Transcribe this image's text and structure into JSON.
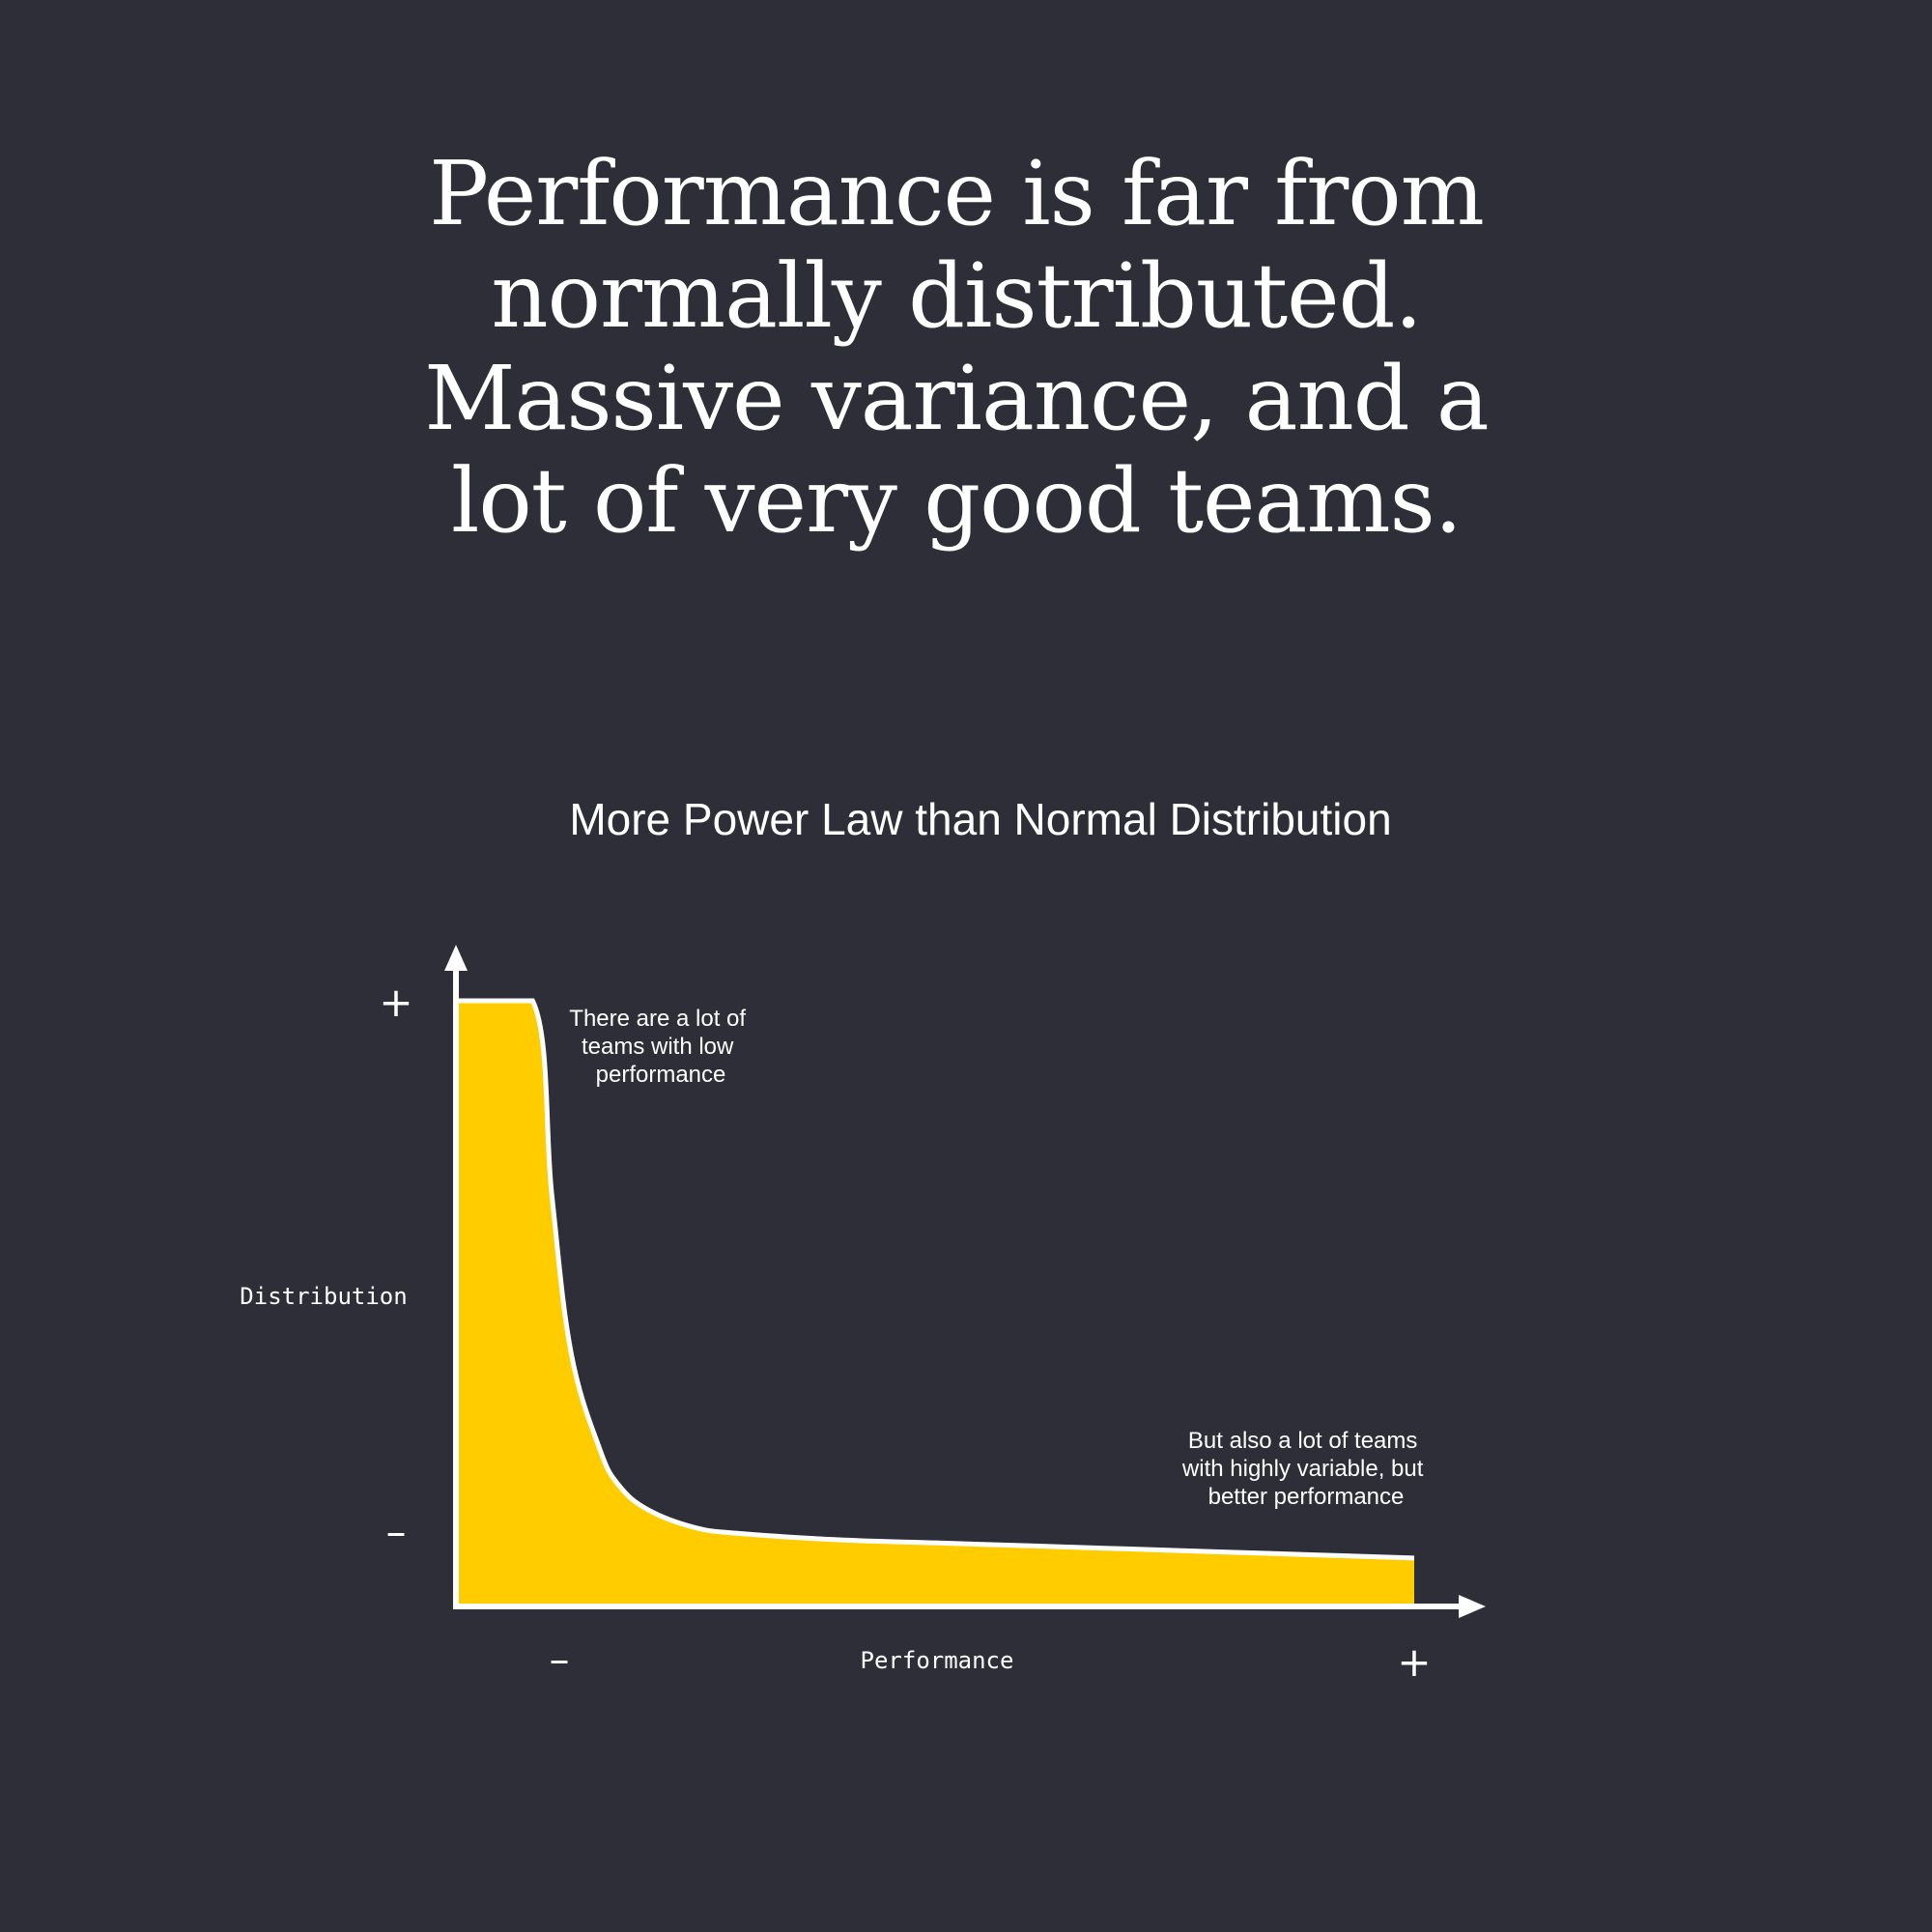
{
  "headline": {
    "lines": [
      "Performance is far from",
      "normally distributed.",
      "Massive variance, and a",
      "lot of very good teams."
    ]
  },
  "colors": {
    "background": "#2e2e38",
    "fill": "#ffcc00",
    "curve": "#ffffff",
    "text": "#ffffff"
  },
  "chart_data": {
    "type": "area",
    "title": "More Power Law than Normal Distribution",
    "xlabel": "Performance",
    "ylabel": "Distribution",
    "x_tick_labels": [
      "–",
      "+"
    ],
    "y_tick_labels": [
      "+",
      "–"
    ],
    "xlim": [
      0,
      1
    ],
    "ylim": [
      0,
      1
    ],
    "grid": false,
    "x": [
      0,
      0.08,
      0.1,
      0.12,
      0.15,
      0.17,
      0.2,
      0.25,
      0.3,
      0.4,
      0.5,
      0.6,
      0.7,
      0.8,
      0.9,
      1.0
    ],
    "values": [
      1.0,
      1.0,
      0.68,
      0.42,
      0.26,
      0.2,
      0.16,
      0.13,
      0.12,
      0.11,
      0.105,
      0.1,
      0.095,
      0.09,
      0.085,
      0.08
    ],
    "annotations": [
      {
        "lines": [
          "There are a lot of",
          "teams with low",
          "performance"
        ]
      },
      {
        "lines": [
          "But also a lot of teams",
          "with highly variable, but",
          "better performance"
        ]
      }
    ]
  }
}
